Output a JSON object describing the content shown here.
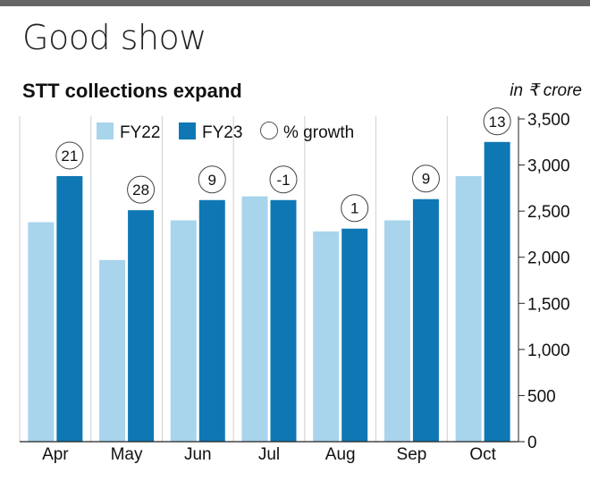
{
  "headline": "Good show",
  "chart_data": {
    "type": "bar",
    "title": "STT collections expand",
    "unit_label": "in ₹ crore",
    "categories": [
      "Apr",
      "May",
      "Jun",
      "Jul",
      "Aug",
      "Sep",
      "Oct"
    ],
    "series": [
      {
        "name": "FY22",
        "color": "#a8d4ec",
        "values": [
          2380,
          1970,
          2400,
          2660,
          2280,
          2400,
          2880
        ]
      },
      {
        "name": "FY23",
        "color": "#0f78b4",
        "values": [
          2880,
          2510,
          2620,
          2620,
          2310,
          2630,
          3250
        ]
      }
    ],
    "growth_label": "% growth",
    "growth": [
      "21",
      "28",
      "9",
      "-1",
      "1",
      "9",
      "13"
    ],
    "ylim": [
      0,
      3500
    ],
    "yticks": [
      0,
      500,
      1000,
      1500,
      2000,
      2500,
      3000,
      3500
    ],
    "ytick_labels": [
      "0",
      "500",
      "1,000",
      "1,500",
      "2,000",
      "2,500",
      "3,000",
      "3,500"
    ],
    "grid": true,
    "legend_position": "top-left"
  }
}
